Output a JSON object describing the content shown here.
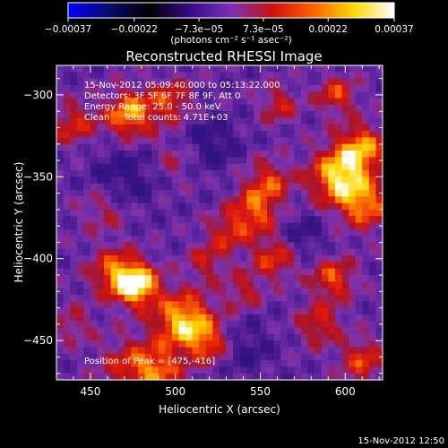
{
  "chart_data": {
    "type": "heatmap",
    "title": "Reconstructed RHESSI Image",
    "xlabel": "Heliocentric X (arcsec)",
    "ylabel": "Heliocentric Y (arcsec)",
    "xlim": [
      430,
      622
    ],
    "ylim": [
      -474,
      -282
    ],
    "x_ticks": [
      450,
      500,
      550,
      600
    ],
    "y_ticks": [
      -300,
      -350,
      -400,
      -450
    ],
    "x_tick_labels": [
      "450",
      "500",
      "550",
      "600"
    ],
    "y_tick_labels": [
      "−300",
      "−350",
      "−400",
      "−450"
    ],
    "colorbar": {
      "min": -0.00037,
      "max": 0.00037,
      "tick_values": [
        -0.00037,
        -0.00022,
        -7.3e-05,
        7.3e-05,
        0.00022,
        0.00037
      ],
      "tick_labels": [
        "−0.00037",
        "−0.00022",
        "−7.3e−05",
        "7.3e−05",
        "0.00022",
        "0.00037"
      ],
      "units": "(photons cm⁻² s⁻¹ asec⁻²)",
      "colors": [
        "#0000ff",
        "#0a0a70",
        "#000000",
        "#3a0a8a",
        "#7a30b8",
        "#cc1010",
        "#ff6000",
        "#ffd800",
        "#ffffff"
      ]
    },
    "annotations": [
      "15-Nov-2012 05:09:40.000 to 05:13:22.000",
      "Detectors: 3F 5F 6F 7F 8F 9F, Att 0",
      "Energy Range: 25.0 - 50.0 keV",
      "Clean     Total counts: 4.71E+03"
    ],
    "peak_label": "Position of Peak = [475,-416]",
    "peak_position": [
      475,
      -416
    ],
    "timestamp": "15-Nov-2012 12:50",
    "sources": [
      {
        "x": 477,
        "y": -416,
        "amplitude": 1.0,
        "width": 9
      },
      {
        "x": 464,
        "y": -408,
        "amplitude": 0.55,
        "width": 10
      },
      {
        "x": 505,
        "y": -438,
        "amplitude": 0.85,
        "width": 12
      },
      {
        "x": 520,
        "y": -452,
        "amplitude": 0.5,
        "width": 9
      },
      {
        "x": 490,
        "y": -468,
        "amplitude": 0.55,
        "width": 10
      },
      {
        "x": 472,
        "y": -465,
        "amplitude": 0.4,
        "width": 12
      },
      {
        "x": 473,
        "y": -312,
        "amplitude": 0.75,
        "width": 10
      },
      {
        "x": 497,
        "y": -304,
        "amplitude": 0.5,
        "width": 9
      },
      {
        "x": 440,
        "y": -318,
        "amplitude": 0.45,
        "width": 9
      },
      {
        "x": 597,
        "y": -350,
        "amplitude": 0.9,
        "width": 12
      },
      {
        "x": 610,
        "y": -332,
        "amplitude": 0.65,
        "width": 10
      },
      {
        "x": 612,
        "y": -368,
        "amplitude": 0.6,
        "width": 10
      },
      {
        "x": 595,
        "y": -300,
        "amplitude": 0.5,
        "width": 8
      },
      {
        "x": 561,
        "y": -306,
        "amplitude": 0.4,
        "width": 8
      },
      {
        "x": 555,
        "y": -353,
        "amplitude": 0.5,
        "width": 9
      },
      {
        "x": 546,
        "y": -372,
        "amplitude": 0.6,
        "width": 10
      },
      {
        "x": 558,
        "y": -400,
        "amplitude": 0.5,
        "width": 9
      },
      {
        "x": 530,
        "y": -385,
        "amplitude": 0.4,
        "width": 8
      },
      {
        "x": 518,
        "y": -402,
        "amplitude": 0.35,
        "width": 8
      },
      {
        "x": 540,
        "y": -420,
        "amplitude": 0.35,
        "width": 8
      },
      {
        "x": 593,
        "y": -412,
        "amplitude": 0.55,
        "width": 9
      },
      {
        "x": 585,
        "y": -440,
        "amplitude": 0.45,
        "width": 9
      },
      {
        "x": 610,
        "y": -462,
        "amplitude": 0.5,
        "width": 9
      },
      {
        "x": 458,
        "y": -370,
        "amplitude": 0.3,
        "width": 10
      },
      {
        "x": 500,
        "y": -340,
        "amplitude": 0.25,
        "width": 10
      },
      {
        "x": 440,
        "y": -440,
        "amplitude": 0.3,
        "width": 8
      },
      {
        "x": 520,
        "y": -330,
        "amplitude": -0.3,
        "width": 12
      },
      {
        "x": 470,
        "y": -350,
        "amplitude": -0.3,
        "width": 14
      },
      {
        "x": 575,
        "y": -385,
        "amplitude": -0.25,
        "width": 10
      },
      {
        "x": 540,
        "y": -455,
        "amplitude": -0.25,
        "width": 12
      }
    ]
  }
}
